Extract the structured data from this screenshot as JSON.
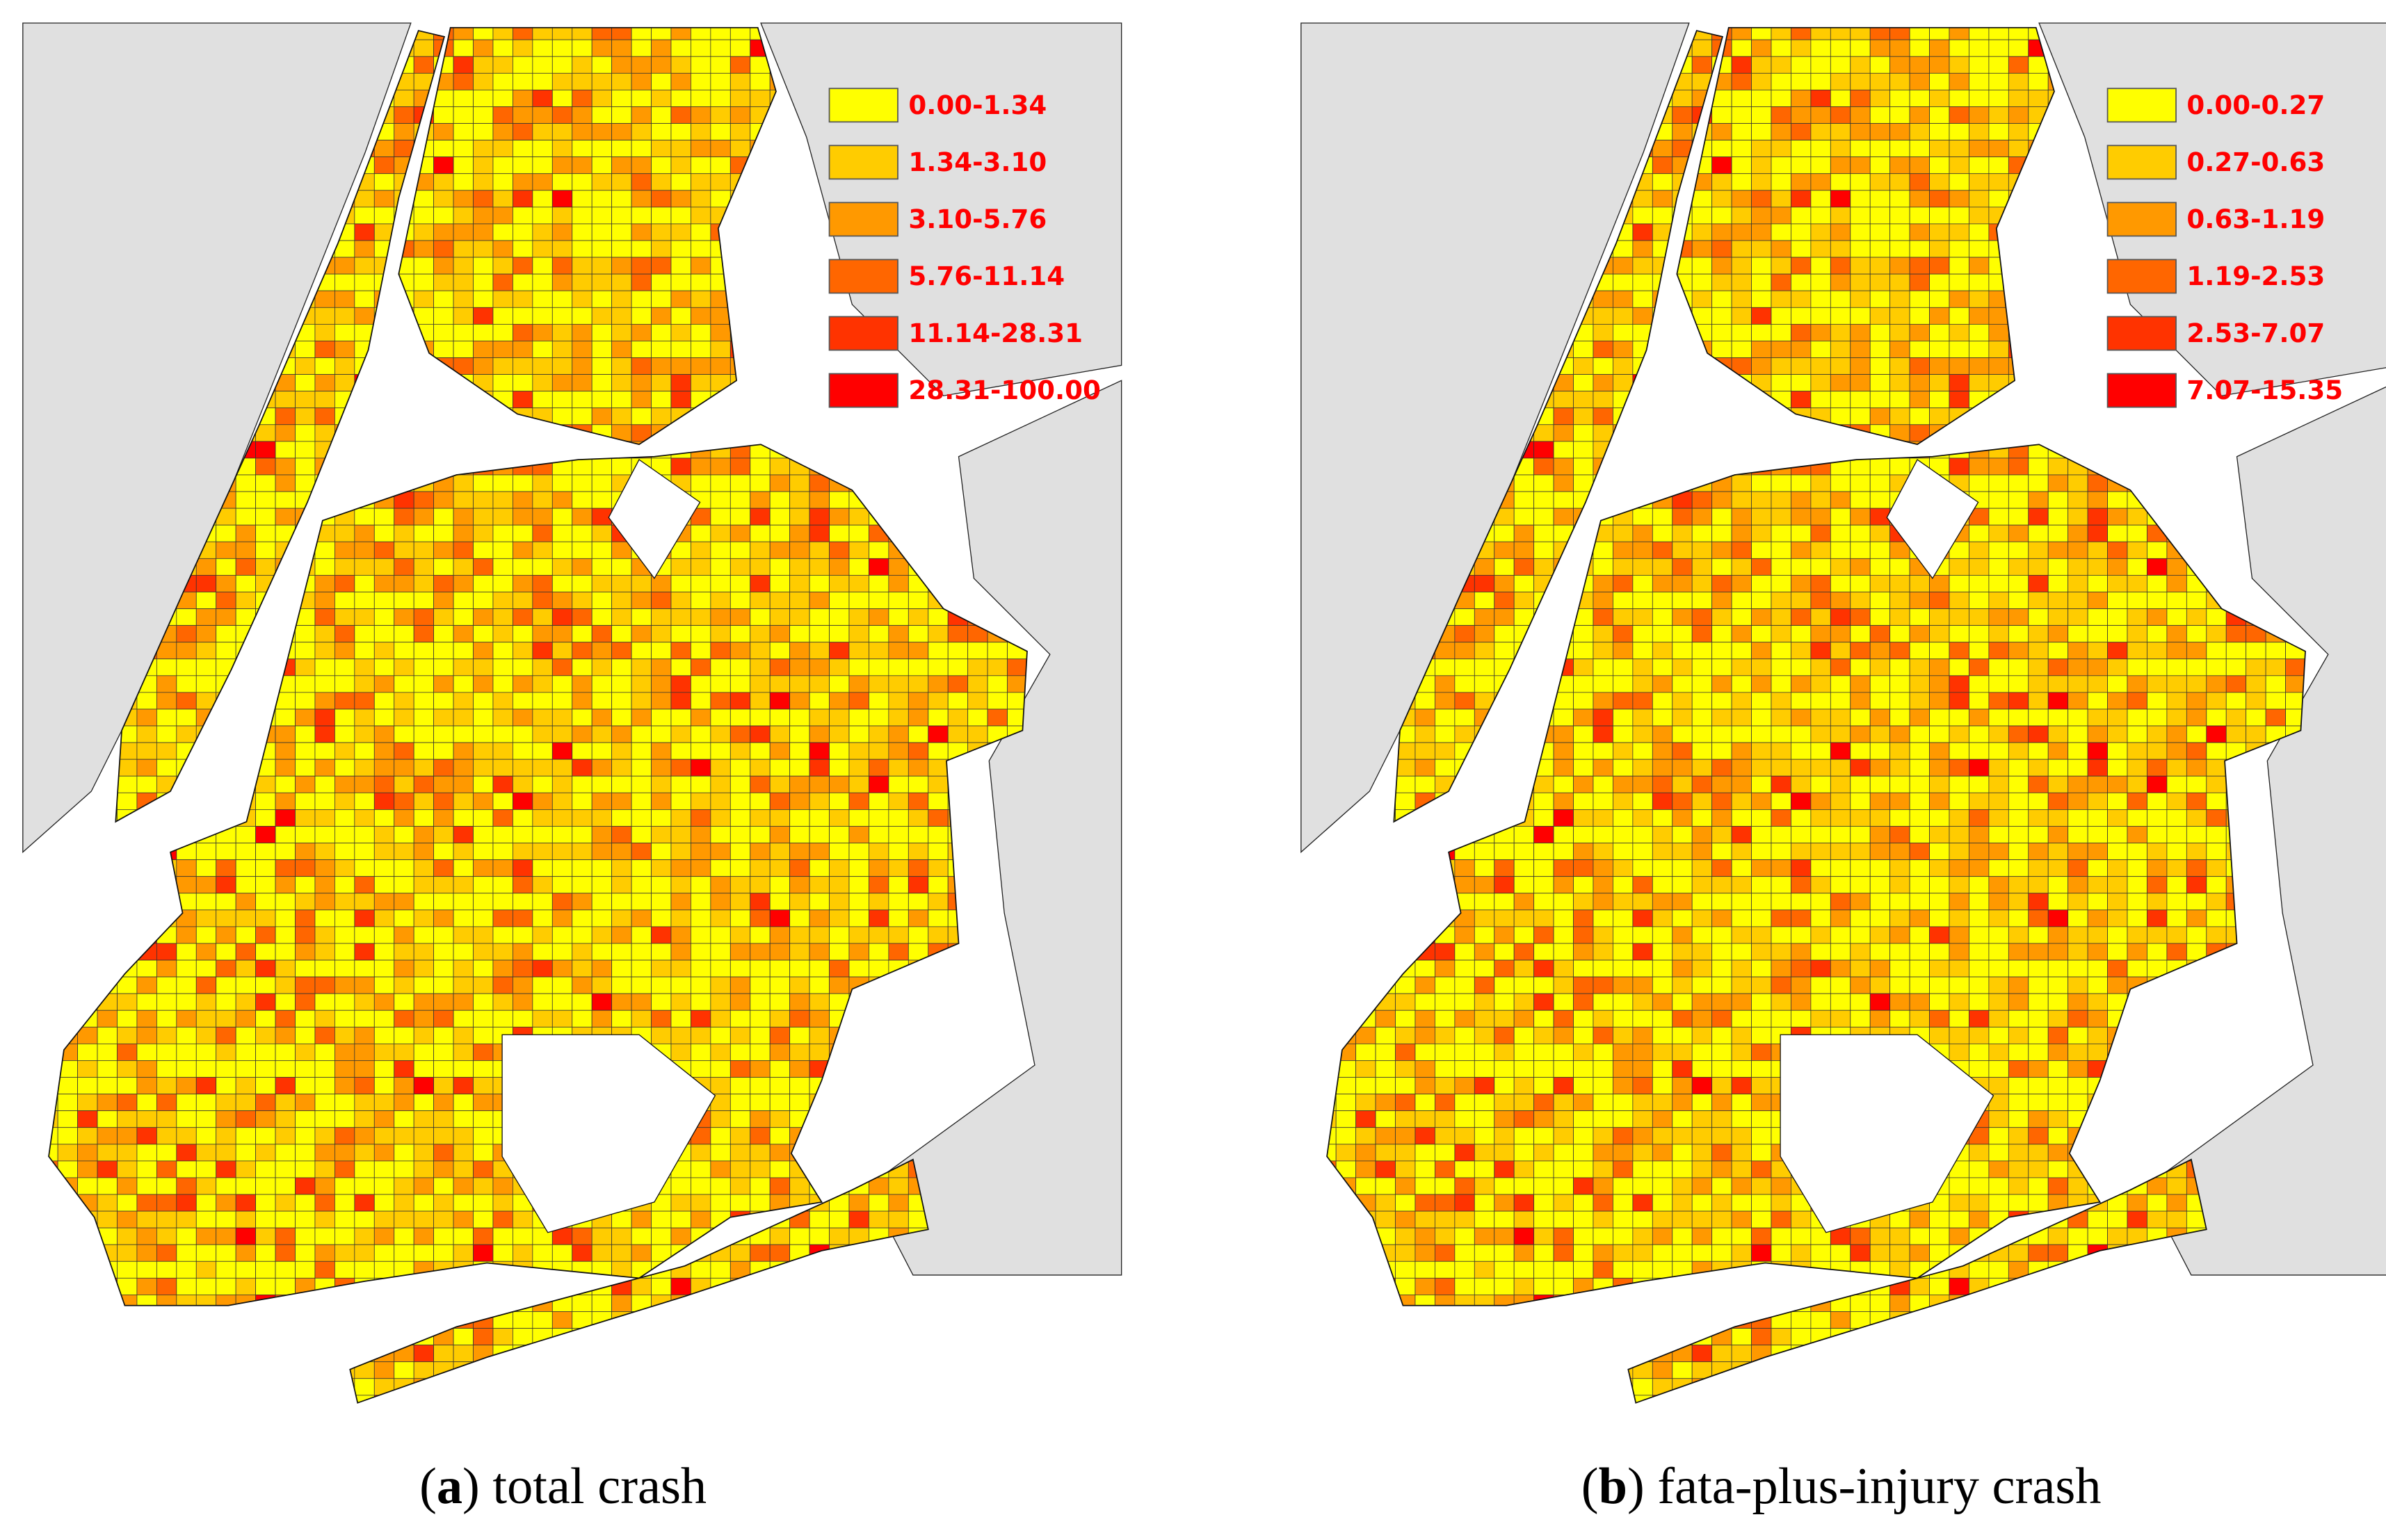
{
  "panels": [
    {
      "legend": [
        {
          "label": "0.00-1.34",
          "color": "#ffff00"
        },
        {
          "label": "1.34-3.10",
          "color": "#ffcc00"
        },
        {
          "label": "3.10-5.76",
          "color": "#ff9900"
        },
        {
          "label": "5.76-11.14",
          "color": "#ff6600"
        },
        {
          "label": "11.14-28.31",
          "color": "#ff3300"
        },
        {
          "label": "28.31-100.00",
          "color": "#ff0000"
        }
      ],
      "caption": [
        "(",
        "a",
        ") total crash"
      ]
    },
    {
      "legend": [
        {
          "label": "0.00-0.27",
          "color": "#ffff00"
        },
        {
          "label": "0.27-0.63",
          "color": "#ffcc00"
        },
        {
          "label": "0.63-1.19",
          "color": "#ff9900"
        },
        {
          "label": "1.19-2.53",
          "color": "#ff6600"
        },
        {
          "label": "2.53-7.07",
          "color": "#ff3300"
        },
        {
          "label": "7.07-15.35",
          "color": "#ff0000"
        }
      ],
      "caption": [
        "(",
        "b",
        ") fata-plus-injury crash"
      ]
    }
  ]
}
